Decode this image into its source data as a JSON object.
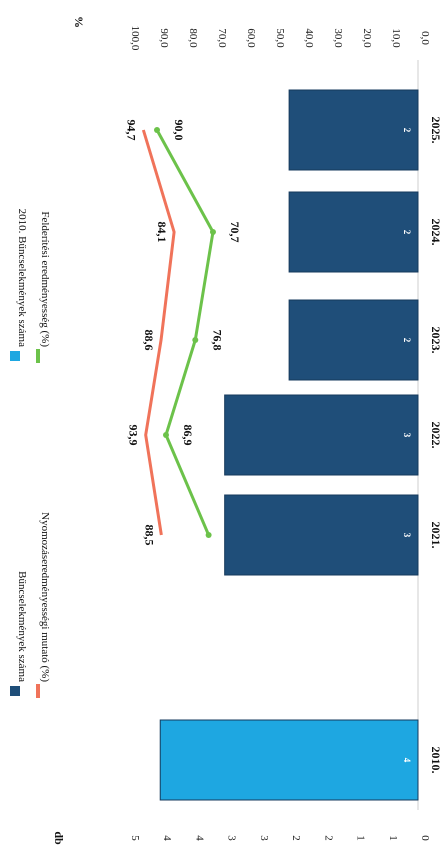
{
  "chart_data": {
    "type": "bar",
    "categories": [
      "2010.",
      "2021.",
      "2022.",
      "2023.",
      "2024.",
      "2025."
    ],
    "left_axis_unit": "db",
    "right_axis_unit": "%",
    "left_ticks": [
      "0",
      "1",
      "1",
      "2",
      "2",
      "3",
      "3",
      "4",
      "4",
      "5"
    ],
    "right_ticks": [
      "0,0",
      "10,0",
      "20,0",
      "30,0",
      "40,0",
      "50,0",
      "60,0",
      "70,0",
      "80,0",
      "90,0",
      "100,0"
    ],
    "ylim_left": [
      0,
      4.5
    ],
    "ylim_right": [
      0,
      100
    ],
    "bars": [
      {
        "category": "2010.",
        "value": 4,
        "label": "4",
        "series": "2010. Bűncselekmények száma",
        "color": "#1ea7e1"
      },
      {
        "category": "2021.",
        "value": 3,
        "label": "3",
        "series": "Bűncselekmények száma",
        "color": "#1f4e79"
      },
      {
        "category": "2022.",
        "value": 3,
        "label": "3",
        "series": "Bűncselekmények száma",
        "color": "#1f4e79"
      },
      {
        "category": "2023.",
        "value": 2,
        "label": "2",
        "series": "Bűncselekmények száma",
        "color": "#1f4e79"
      },
      {
        "category": "2024.",
        "value": 2,
        "label": "2",
        "series": "Bűncselekmények száma",
        "color": "#1f4e79"
      },
      {
        "category": "2025.",
        "value": 2,
        "label": "2",
        "series": "Bűncselekmények száma",
        "color": "#1f4e79"
      }
    ],
    "lines": [
      {
        "name": "Nyomozáseredményességi mutató (%)",
        "color": "#f0735a",
        "categories": [
          "2021.",
          "2022.",
          "2023.",
          "2024.",
          "2025."
        ],
        "values": [
          88.5,
          93.9,
          88.6,
          84.1,
          94.7
        ],
        "labels": [
          "88,5",
          "93,9",
          "88,6",
          "84,1",
          "94,7"
        ]
      },
      {
        "name": "Felderítési eredményesség (%)",
        "color": "#6cc24a",
        "categories": [
          "2021.",
          "2022.",
          "2023.",
          "2024.",
          "2025."
        ],
        "values": [
          72.2,
          86.9,
          76.8,
          70.7,
          90.0
        ],
        "labels": [
          "",
          "86,9",
          "76,8",
          "70,7",
          "90,0"
        ]
      }
    ],
    "legend": [
      {
        "name": "Bűncselekmények száma",
        "color": "#1f4e79",
        "kind": "box"
      },
      {
        "name": "2010. Bűncselekmények száma",
        "color": "#1ea7e1",
        "kind": "box"
      },
      {
        "name": "Nyomozáseredményességi mutató (%)",
        "color": "#f0735a",
        "kind": "line"
      },
      {
        "name": "Felderítési eredményesség (%)",
        "color": "#6cc24a",
        "kind": "line"
      }
    ],
    "orientation": "rotated-90-clockwise",
    "legend_position": "top"
  }
}
